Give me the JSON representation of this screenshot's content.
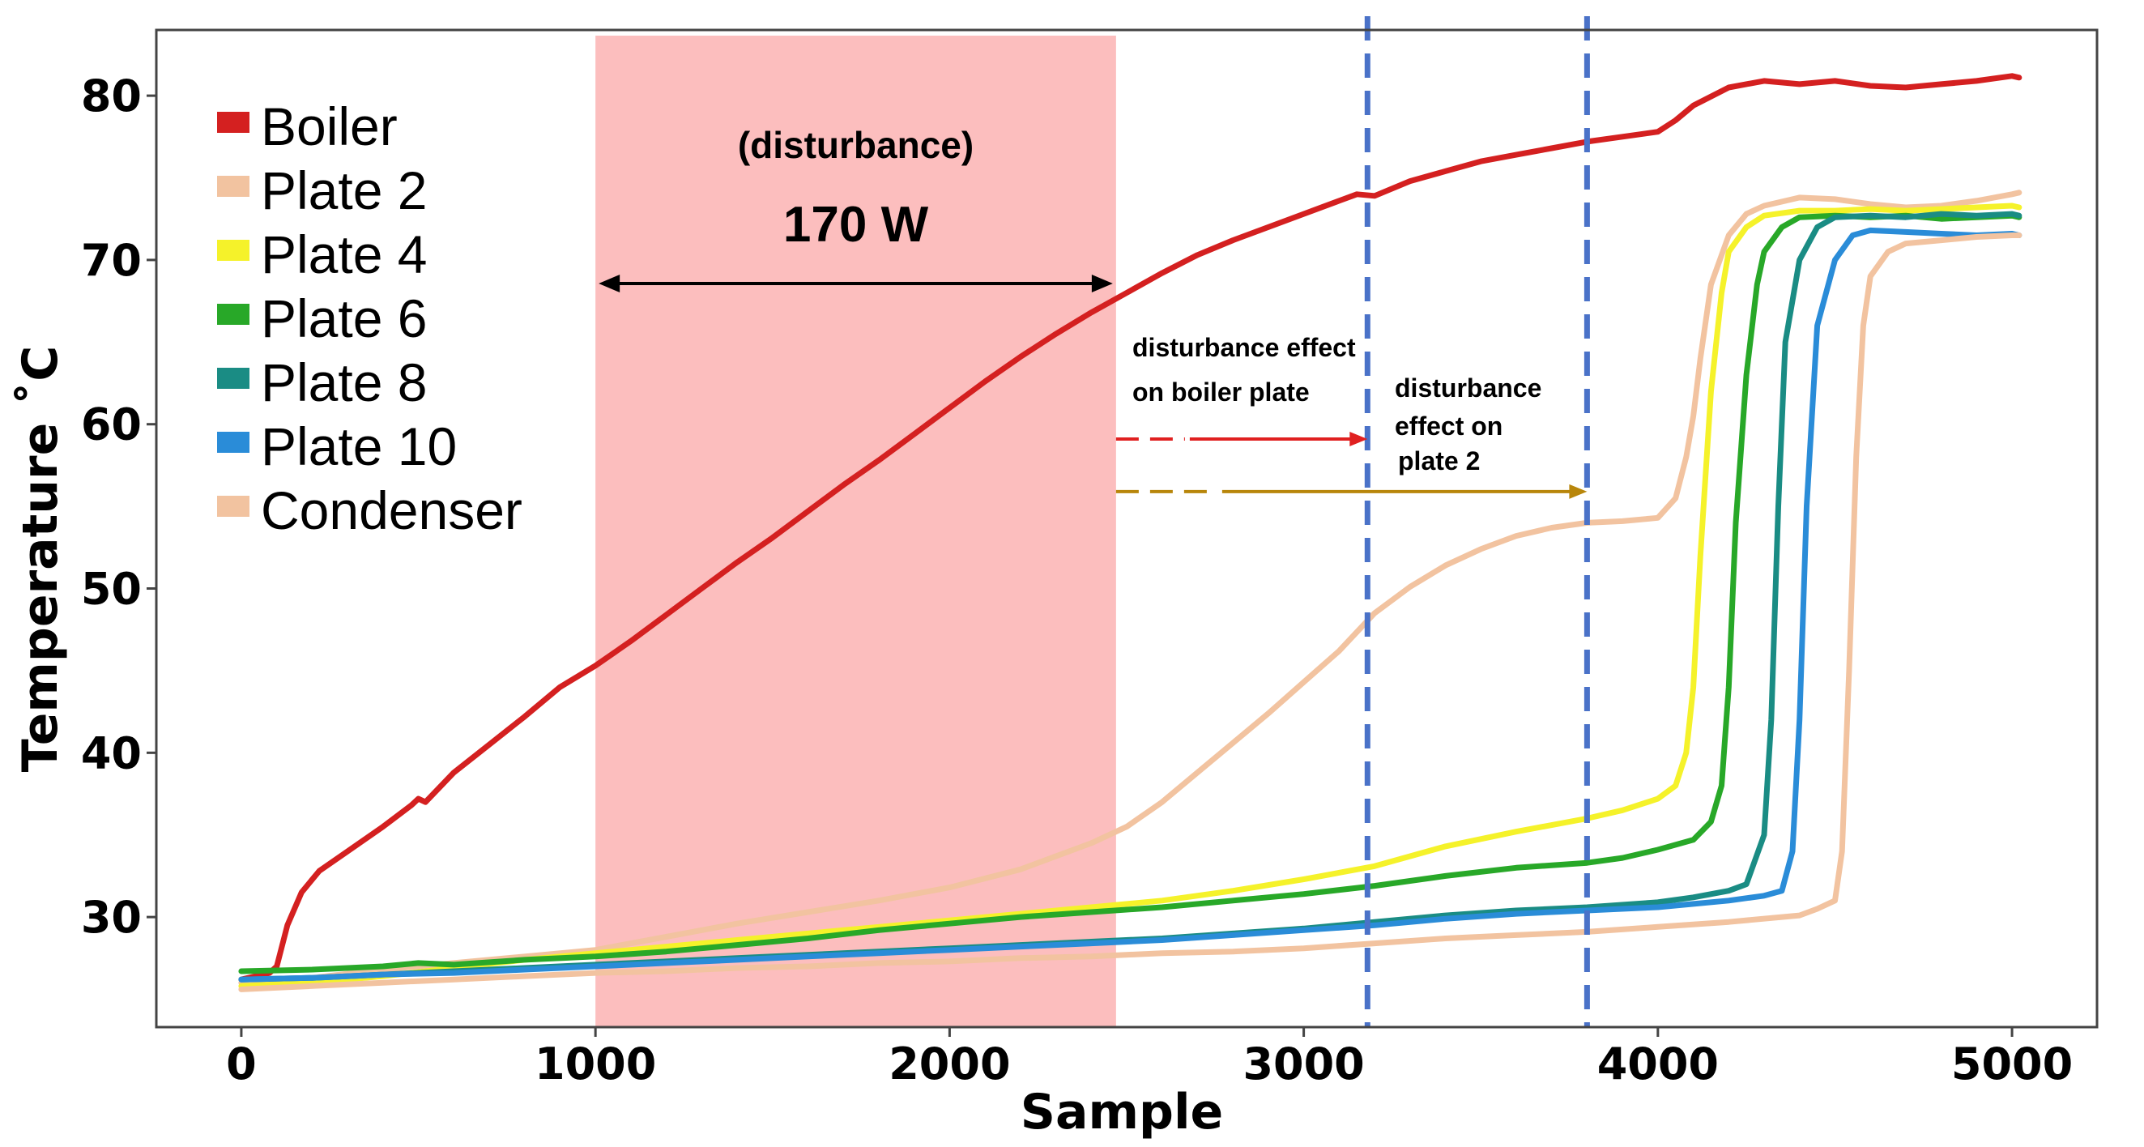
{
  "chart_data": {
    "type": "line",
    "xlabel": "Sample",
    "ylabel": "Temperature ˚C",
    "xlim": [
      -240,
      5240
    ],
    "ylim": [
      23.3,
      84
    ],
    "xticks": [
      0,
      1000,
      2000,
      3000,
      4000,
      5000
    ],
    "yticks": [
      30,
      40,
      50,
      60,
      70,
      80
    ],
    "xtick_labels": [
      "0",
      "1000",
      "2000",
      "3000",
      "4000",
      "5000"
    ],
    "ytick_labels": [
      "30",
      "40",
      "50",
      "60",
      "70",
      "80"
    ],
    "grid": false,
    "legend_position": "top-left",
    "shaded_region": {
      "x": [
        1000,
        2470
      ],
      "label_line1": "(disturbance)",
      "label_line2": "170 W",
      "color": "#fcbaba"
    },
    "vertical_lines": [
      {
        "x": 3180,
        "color": "#4a72c8"
      },
      {
        "x": 3800,
        "color": "#4a72c8"
      }
    ],
    "annotations": [
      {
        "lines": [
          "disturbance effect",
          "on boiler plate"
        ],
        "arrow_from": [
          2470,
          59.1
        ],
        "arrow_to": [
          3180,
          59.1
        ],
        "color": "#e02020"
      },
      {
        "lines": [
          "disturbance",
          "effect  on",
          "plate 2"
        ],
        "arrow_from": [
          2470,
          55.9
        ],
        "arrow_to": [
          3800,
          55.9
        ],
        "color": "#b8860b"
      }
    ],
    "series": [
      {
        "name": "Boiler",
        "color": "#d42020",
        "x": [
          0,
          80,
          100,
          130,
          170,
          220,
          300,
          400,
          480,
          500,
          520,
          600,
          700,
          800,
          900,
          1000,
          1100,
          1200,
          1300,
          1400,
          1500,
          1600,
          1700,
          1800,
          1900,
          2000,
          2100,
          2200,
          2300,
          2400,
          2500,
          2600,
          2700,
          2800,
          2900,
          3000,
          3100,
          3150,
          3200,
          3300,
          3400,
          3500,
          3600,
          3700,
          3800,
          3900,
          4000,
          4050,
          4100,
          4200,
          4300,
          4400,
          4500,
          4600,
          4700,
          4800,
          4900,
          5000,
          5020
        ],
        "values": [
          26.2,
          26.6,
          27.0,
          29.5,
          31.5,
          32.8,
          34.0,
          35.5,
          36.8,
          37.2,
          37.0,
          38.8,
          40.5,
          42.2,
          44.0,
          45.3,
          46.8,
          48.4,
          50.0,
          51.6,
          53.1,
          54.7,
          56.3,
          57.8,
          59.4,
          61.0,
          62.6,
          64.1,
          65.5,
          66.8,
          68.0,
          69.2,
          70.3,
          71.2,
          72.0,
          72.8,
          73.6,
          74.0,
          73.9,
          74.8,
          75.4,
          76.0,
          76.4,
          76.8,
          77.2,
          77.5,
          77.8,
          78.5,
          79.4,
          80.5,
          80.9,
          80.7,
          80.9,
          80.6,
          80.5,
          80.7,
          80.9,
          81.2,
          81.1
        ]
      },
      {
        "name": "Plate 2",
        "color": "#f2c3a0",
        "x": [
          0,
          200,
          400,
          600,
          800,
          1000,
          1200,
          1400,
          1600,
          1800,
          2000,
          2200,
          2400,
          2500,
          2600,
          2700,
          2800,
          2900,
          3000,
          3100,
          3200,
          3300,
          3400,
          3500,
          3600,
          3700,
          3800,
          3900,
          4000,
          4050,
          4080,
          4100,
          4120,
          4150,
          4200,
          4250,
          4300,
          4400,
          4500,
          4600,
          4700,
          4800,
          4900,
          5000,
          5020
        ],
        "values": [
          26.0,
          26.3,
          26.8,
          27.2,
          27.6,
          28.0,
          28.8,
          29.6,
          30.3,
          31.0,
          31.8,
          32.9,
          34.5,
          35.5,
          37.0,
          38.8,
          40.6,
          42.4,
          44.3,
          46.2,
          48.5,
          50.1,
          51.4,
          52.4,
          53.2,
          53.7,
          54.0,
          54.1,
          54.3,
          55.5,
          58.0,
          60.5,
          64.0,
          68.5,
          71.5,
          72.8,
          73.3,
          73.8,
          73.7,
          73.4,
          73.2,
          73.3,
          73.6,
          74.0,
          74.1
        ]
      },
      {
        "name": "Plate 4",
        "color": "#f5f22a",
        "x": [
          0,
          200,
          400,
          600,
          800,
          1000,
          1200,
          1400,
          1600,
          1800,
          2000,
          2200,
          2400,
          2600,
          2800,
          3000,
          3200,
          3400,
          3600,
          3800,
          3900,
          4000,
          4050,
          4080,
          4100,
          4120,
          4150,
          4180,
          4200,
          4250,
          4300,
          4400,
          4500,
          4600,
          4700,
          4800,
          4900,
          5000,
          5020
        ],
        "values": [
          25.8,
          26.0,
          26.4,
          26.9,
          27.4,
          27.8,
          28.2,
          28.6,
          29.0,
          29.4,
          29.8,
          30.2,
          30.6,
          31.0,
          31.6,
          32.3,
          33.1,
          34.3,
          35.2,
          36.0,
          36.5,
          37.2,
          38.0,
          40.0,
          44.0,
          52.0,
          62.0,
          68.0,
          70.5,
          72.0,
          72.7,
          73.0,
          73.0,
          73.1,
          73.0,
          73.1,
          73.2,
          73.3,
          73.2
        ]
      },
      {
        "name": "Plate 6",
        "color": "#28a828",
        "x": [
          0,
          200,
          400,
          500,
          600,
          800,
          1000,
          1200,
          1400,
          1600,
          1800,
          2000,
          2200,
          2400,
          2600,
          2800,
          3000,
          3200,
          3400,
          3600,
          3800,
          3900,
          4000,
          4100,
          4150,
          4180,
          4200,
          4220,
          4250,
          4280,
          4300,
          4350,
          4400,
          4500,
          4600,
          4700,
          4800,
          4900,
          5000,
          5020
        ],
        "values": [
          26.7,
          26.8,
          27.0,
          27.2,
          27.1,
          27.4,
          27.6,
          27.9,
          28.3,
          28.7,
          29.2,
          29.6,
          30.0,
          30.3,
          30.6,
          31.0,
          31.4,
          31.9,
          32.5,
          33.0,
          33.3,
          33.6,
          34.1,
          34.7,
          35.8,
          38.0,
          44.0,
          54.0,
          63.0,
          68.5,
          70.5,
          72.0,
          72.6,
          72.7,
          72.6,
          72.7,
          72.5,
          72.6,
          72.7,
          72.6
        ]
      },
      {
        "name": "Plate 8",
        "color": "#1a8c84",
        "x": [
          0,
          200,
          400,
          600,
          800,
          1000,
          1200,
          1400,
          1600,
          1800,
          2000,
          2200,
          2400,
          2600,
          2800,
          3000,
          3200,
          3400,
          3600,
          3800,
          4000,
          4100,
          4200,
          4250,
          4300,
          4320,
          4340,
          4360,
          4400,
          4450,
          4500,
          4600,
          4700,
          4800,
          4900,
          5000,
          5020
        ],
        "values": [
          26.2,
          26.3,
          26.5,
          26.7,
          26.9,
          27.1,
          27.3,
          27.5,
          27.7,
          27.9,
          28.1,
          28.3,
          28.5,
          28.7,
          29.0,
          29.3,
          29.7,
          30.1,
          30.4,
          30.6,
          30.9,
          31.2,
          31.6,
          32.0,
          35.0,
          42.0,
          55.0,
          65.0,
          70.0,
          72.0,
          72.6,
          72.7,
          72.6,
          72.8,
          72.7,
          72.8,
          72.7
        ]
      },
      {
        "name": "Plate 10",
        "color": "#2a8cd8",
        "x": [
          0,
          200,
          400,
          600,
          800,
          1000,
          1200,
          1400,
          1600,
          1800,
          2000,
          2200,
          2400,
          2600,
          2800,
          3000,
          3200,
          3400,
          3600,
          3800,
          4000,
          4100,
          4200,
          4300,
          4350,
          4380,
          4400,
          4420,
          4450,
          4500,
          4550,
          4600,
          4700,
          4800,
          4900,
          5000,
          5020
        ],
        "values": [
          26.2,
          26.3,
          26.5,
          26.6,
          26.8,
          27.0,
          27.2,
          27.4,
          27.6,
          27.8,
          28.0,
          28.2,
          28.4,
          28.6,
          28.9,
          29.2,
          29.5,
          29.9,
          30.2,
          30.4,
          30.6,
          30.8,
          31.0,
          31.3,
          31.6,
          34.0,
          42.0,
          55.0,
          66.0,
          70.0,
          71.5,
          71.8,
          71.7,
          71.6,
          71.5,
          71.6,
          71.5
        ]
      },
      {
        "name": "Condenser",
        "color": "#f2c3a0",
        "x": [
          0,
          200,
          400,
          600,
          800,
          1000,
          1200,
          1400,
          1600,
          1800,
          2000,
          2200,
          2400,
          2600,
          2800,
          3000,
          3200,
          3400,
          3600,
          3800,
          4000,
          4200,
          4400,
          4450,
          4500,
          4520,
          4540,
          4560,
          4580,
          4600,
          4650,
          4700,
          4800,
          4900,
          5000,
          5020
        ],
        "values": [
          25.6,
          25.8,
          26.0,
          26.2,
          26.4,
          26.6,
          26.7,
          26.9,
          27.0,
          27.2,
          27.3,
          27.5,
          27.6,
          27.8,
          27.9,
          28.1,
          28.4,
          28.7,
          28.9,
          29.1,
          29.4,
          29.7,
          30.1,
          30.5,
          31.0,
          34.0,
          45.0,
          58.0,
          66.0,
          69.0,
          70.5,
          71.0,
          71.2,
          71.4,
          71.5,
          71.5
        ]
      }
    ]
  }
}
